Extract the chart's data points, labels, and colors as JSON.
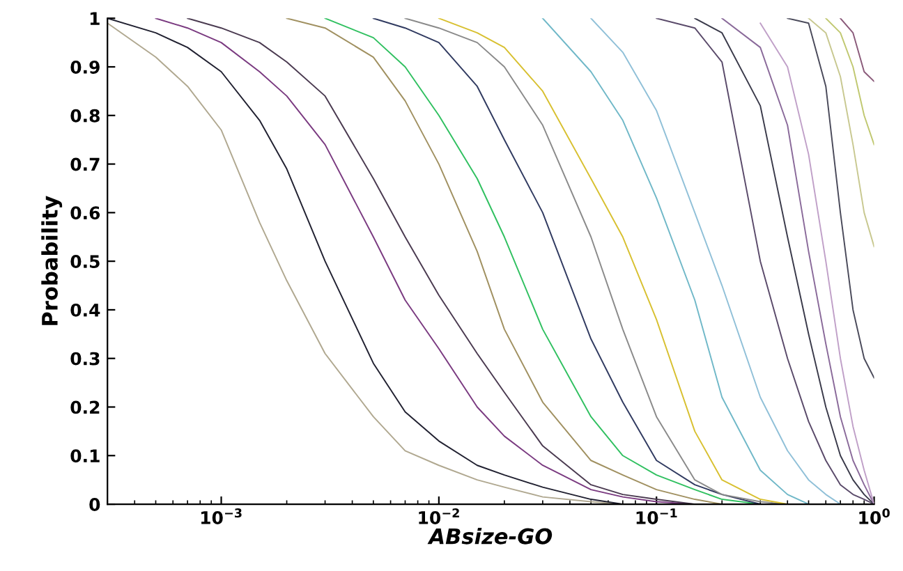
{
  "chart_data": {
    "type": "line",
    "xlabel": "ABsize-GO",
    "ylabel": "Probability",
    "log": "x",
    "xlim": [
      0.0003,
      1
    ],
    "ylim": [
      0,
      1
    ],
    "xticks": [
      {
        "value": 0.001,
        "label": "10$^{−3}$"
      },
      {
        "value": 0.01,
        "label": "10$^{−2}$"
      },
      {
        "value": 0.1,
        "label": "10$^{−1}$"
      },
      {
        "value": 1,
        "label": "10$^{0}$"
      }
    ],
    "yticks": [
      0,
      0.1,
      0.2,
      0.3,
      0.4,
      0.5,
      0.6,
      0.7,
      0.8,
      0.9,
      1
    ],
    "grid": false,
    "marker": "none",
    "line_style": "solid",
    "series": [
      {
        "color": "#b0a890",
        "x": [
          0.0003,
          0.0005,
          0.0007,
          0.001,
          0.0015,
          0.002,
          0.003,
          0.005,
          0.007,
          0.01,
          0.015,
          0.02,
          0.03,
          0.05,
          0.07
        ],
        "values": [
          0.99,
          0.92,
          0.86,
          0.77,
          0.58,
          0.46,
          0.31,
          0.18,
          0.11,
          0.08,
          0.05,
          0.035,
          0.015,
          0.005,
          0
        ]
      },
      {
        "color": "#202030",
        "x": [
          0.0003,
          0.0005,
          0.0007,
          0.001,
          0.0015,
          0.002,
          0.003,
          0.005,
          0.007,
          0.01,
          0.015,
          0.02,
          0.03,
          0.05,
          0.07
        ],
        "values": [
          1.0,
          0.97,
          0.94,
          0.89,
          0.79,
          0.69,
          0.5,
          0.29,
          0.19,
          0.13,
          0.08,
          0.06,
          0.035,
          0.01,
          0
        ]
      },
      {
        "color": "#7a3a80",
        "x": [
          0.0005,
          0.0007,
          0.001,
          0.0015,
          0.002,
          0.003,
          0.005,
          0.007,
          0.01,
          0.015,
          0.02,
          0.03,
          0.05,
          0.07,
          0.1,
          0.15
        ],
        "values": [
          1.0,
          0.98,
          0.95,
          0.89,
          0.84,
          0.74,
          0.55,
          0.42,
          0.32,
          0.2,
          0.14,
          0.08,
          0.03,
          0.015,
          0.005,
          0
        ]
      },
      {
        "color": "#4a3a50",
        "x": [
          0.0007,
          0.001,
          0.0015,
          0.002,
          0.003,
          0.005,
          0.007,
          0.01,
          0.015,
          0.02,
          0.03,
          0.05,
          0.07,
          0.1,
          0.15
        ],
        "values": [
          1.0,
          0.98,
          0.95,
          0.91,
          0.84,
          0.67,
          0.55,
          0.43,
          0.31,
          0.23,
          0.12,
          0.04,
          0.02,
          0.01,
          0
        ]
      },
      {
        "color": "#a09060",
        "x": [
          0.002,
          0.003,
          0.005,
          0.007,
          0.01,
          0.015,
          0.02,
          0.03,
          0.05,
          0.07,
          0.1,
          0.15,
          0.2
        ],
        "values": [
          1.0,
          0.98,
          0.92,
          0.83,
          0.7,
          0.52,
          0.36,
          0.21,
          0.09,
          0.06,
          0.03,
          0.01,
          0
        ]
      },
      {
        "color": "#30c060",
        "x": [
          0.003,
          0.005,
          0.007,
          0.01,
          0.015,
          0.02,
          0.03,
          0.05,
          0.07,
          0.1,
          0.15,
          0.2,
          0.3
        ],
        "values": [
          1.0,
          0.96,
          0.9,
          0.8,
          0.67,
          0.55,
          0.36,
          0.18,
          0.1,
          0.06,
          0.03,
          0.01,
          0
        ]
      },
      {
        "color": "#303a60",
        "x": [
          0.005,
          0.007,
          0.01,
          0.015,
          0.02,
          0.03,
          0.05,
          0.07,
          0.1,
          0.15,
          0.2,
          0.3
        ],
        "values": [
          1.0,
          0.98,
          0.95,
          0.86,
          0.75,
          0.6,
          0.34,
          0.21,
          0.09,
          0.04,
          0.02,
          0
        ]
      },
      {
        "color": "#8a8a8a",
        "x": [
          0.007,
          0.01,
          0.015,
          0.02,
          0.03,
          0.05,
          0.07,
          0.1,
          0.15,
          0.2,
          0.3,
          0.4
        ],
        "values": [
          1.0,
          0.98,
          0.95,
          0.9,
          0.78,
          0.55,
          0.36,
          0.18,
          0.05,
          0.02,
          0.005,
          0
        ]
      },
      {
        "color": "#d8c030",
        "x": [
          0.01,
          0.015,
          0.02,
          0.03,
          0.05,
          0.07,
          0.1,
          0.15,
          0.2,
          0.3,
          0.4
        ],
        "values": [
          1.0,
          0.97,
          0.94,
          0.85,
          0.67,
          0.55,
          0.38,
          0.15,
          0.05,
          0.01,
          0
        ]
      },
      {
        "color": "#70b8c8",
        "x": [
          0.03,
          0.05,
          0.07,
          0.1,
          0.15,
          0.2,
          0.3,
          0.4,
          0.5
        ],
        "values": [
          1.0,
          0.89,
          0.79,
          0.63,
          0.42,
          0.22,
          0.07,
          0.02,
          0
        ]
      },
      {
        "color": "#90c0d8",
        "x": [
          0.05,
          0.07,
          0.1,
          0.15,
          0.2,
          0.3,
          0.4,
          0.5,
          0.6,
          0.7
        ],
        "values": [
          1.0,
          0.93,
          0.81,
          0.6,
          0.45,
          0.22,
          0.11,
          0.05,
          0.02,
          0
        ]
      },
      {
        "color": "#5a4a6a",
        "x": [
          0.1,
          0.15,
          0.2,
          0.3,
          0.4,
          0.5,
          0.6,
          0.7,
          0.8,
          0.9,
          1
        ],
        "values": [
          1.0,
          0.98,
          0.91,
          0.5,
          0.3,
          0.17,
          0.09,
          0.04,
          0.02,
          0.01,
          0
        ]
      },
      {
        "color": "#3a3a4a",
        "x": [
          0.15,
          0.2,
          0.3,
          0.4,
          0.5,
          0.6,
          0.7,
          0.8,
          0.9,
          1
        ],
        "values": [
          1.0,
          0.97,
          0.82,
          0.55,
          0.35,
          0.2,
          0.1,
          0.05,
          0.02,
          0
        ]
      },
      {
        "color": "#8a6a9a",
        "x": [
          0.2,
          0.3,
          0.4,
          0.5,
          0.6,
          0.7,
          0.8,
          0.9,
          1
        ],
        "values": [
          1.0,
          0.94,
          0.78,
          0.52,
          0.33,
          0.18,
          0.09,
          0.04,
          0
        ]
      },
      {
        "color": "#c0a0c8",
        "x": [
          0.3,
          0.4,
          0.5,
          0.6,
          0.7,
          0.8,
          0.9,
          1
        ],
        "values": [
          0.99,
          0.9,
          0.72,
          0.5,
          0.3,
          0.16,
          0.07,
          0
        ]
      },
      {
        "color": "#4a4a5a",
        "x": [
          0.4,
          0.5,
          0.6,
          0.7,
          0.8,
          0.9,
          1
        ],
        "values": [
          1.0,
          0.99,
          0.86,
          0.6,
          0.4,
          0.3,
          0.26
        ]
      },
      {
        "color": "#c8c890",
        "x": [
          0.5,
          0.6,
          0.7,
          0.8,
          0.9,
          1
        ],
        "values": [
          1.0,
          0.97,
          0.88,
          0.74,
          0.6,
          0.53
        ]
      },
      {
        "color": "#c0c870",
        "x": [
          0.6,
          0.7,
          0.8,
          0.9,
          1
        ],
        "values": [
          1.0,
          0.97,
          0.9,
          0.8,
          0.74
        ]
      },
      {
        "color": "#8a5a7a",
        "x": [
          0.7,
          0.8,
          0.9,
          1
        ],
        "values": [
          1.0,
          0.97,
          0.89,
          0.87
        ]
      }
    ]
  }
}
